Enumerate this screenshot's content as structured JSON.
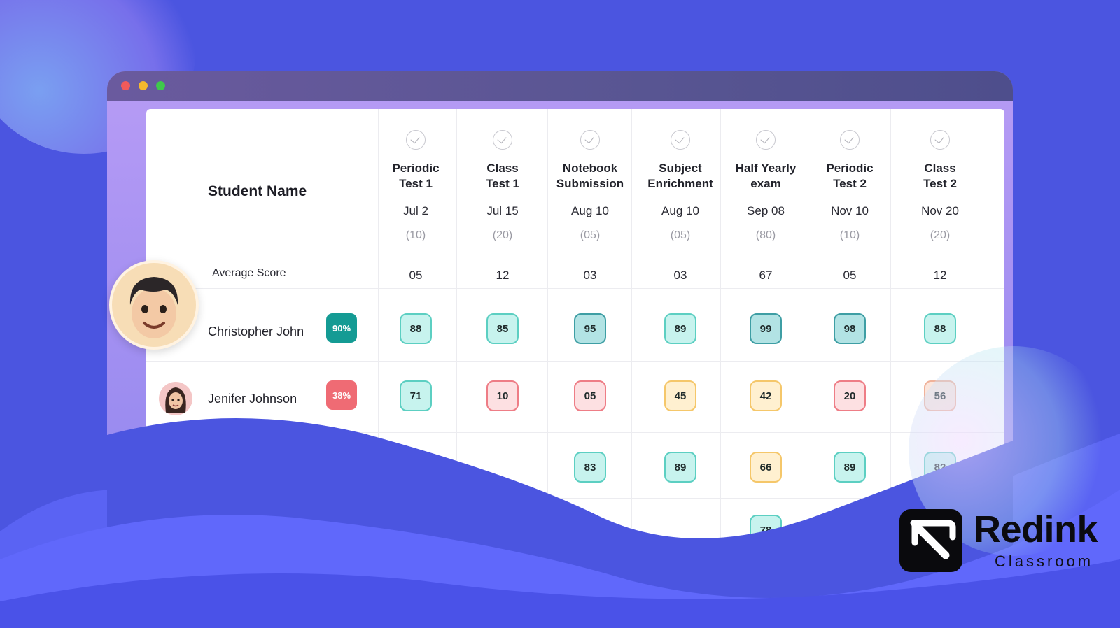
{
  "header": {
    "student_name_label": "Student Name",
    "average_label": "Average Score"
  },
  "columns": [
    {
      "name_line1": "Periodic",
      "name_line2": "Test  1",
      "date": "Jul 2",
      "max": "(10)",
      "avg": "05"
    },
    {
      "name_line1": "Class",
      "name_line2": "Test 1",
      "date": "Jul 15",
      "max": "(20)",
      "avg": "12"
    },
    {
      "name_line1": "Notebook",
      "name_line2": "Submission",
      "date": "Aug 10",
      "max": "(05)",
      "avg": "03"
    },
    {
      "name_line1": "Subject",
      "name_line2": "Enrichment",
      "date": "Aug 10",
      "max": "(05)",
      "avg": "03"
    },
    {
      "name_line1": "Half Yearly",
      "name_line2": "exam",
      "date": "Sep 08",
      "max": "(80)",
      "avg": "67"
    },
    {
      "name_line1": "Periodic",
      "name_line2": "Test  2",
      "date": "Nov 10",
      "max": "(10)",
      "avg": "05"
    },
    {
      "name_line1": "Class",
      "name_line2": "Test 2",
      "date": "Nov 20",
      "max": "(20)",
      "avg": "12"
    }
  ],
  "students": [
    {
      "name": "Christopher John",
      "percent": "90%",
      "percent_color": "#149b94",
      "scores": [
        {
          "v": "88",
          "c": "teal"
        },
        {
          "v": "85",
          "c": "teal"
        },
        {
          "v": "95",
          "c": "dteal"
        },
        {
          "v": "89",
          "c": "teal"
        },
        {
          "v": "99",
          "c": "dteal"
        },
        {
          "v": "98",
          "c": "dteal"
        },
        {
          "v": "88",
          "c": "teal"
        }
      ]
    },
    {
      "name": "Jenifer Johnson",
      "percent": "38%",
      "percent_color": "#ef6b74",
      "scores": [
        {
          "v": "71",
          "c": "teal"
        },
        {
          "v": "10",
          "c": "red"
        },
        {
          "v": "05",
          "c": "red"
        },
        {
          "v": "45",
          "c": "yellow"
        },
        {
          "v": "42",
          "c": "yellow"
        },
        {
          "v": "20",
          "c": "red"
        },
        {
          "v": "56",
          "c": "peach"
        }
      ]
    }
  ],
  "partial_scores": {
    "row3": [
      {
        "v": "83",
        "c": "teal"
      },
      {
        "v": "89",
        "c": "teal"
      },
      {
        "v": "66",
        "c": "yellow"
      },
      {
        "v": "89",
        "c": "teal"
      },
      {
        "v": "82",
        "c": "teal"
      }
    ],
    "row4": [
      {
        "v": "78",
        "c": "teal"
      }
    ]
  },
  "brand": {
    "name": "Redink",
    "sub": "Classroom"
  },
  "colors": {
    "background": "#4b55e0",
    "wave": "#5b63f2",
    "wave_light": "#6870ff"
  }
}
